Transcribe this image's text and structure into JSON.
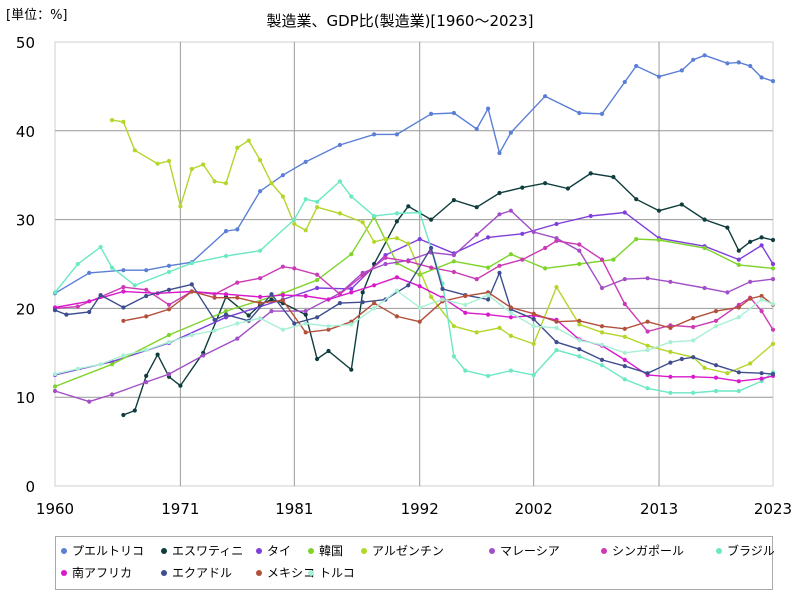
{
  "unit_label": "[単位：%]",
  "chart_data": {
    "type": "line",
    "title": "製造業、GDP比(製造業)[1960～2023]",
    "xlabel": "",
    "ylabel": "",
    "xlim": [
      1960,
      2023
    ],
    "ylim": [
      0,
      50
    ],
    "x_ticks": [
      "1960",
      "1971",
      "1981",
      "1992",
      "2002",
      "2013",
      "2023"
    ],
    "y_ticks": [
      "0",
      "10",
      "20",
      "30",
      "40",
      "50"
    ],
    "grid": true,
    "legend_position": "bottom",
    "series": [
      {
        "name": "プエルトリコ",
        "color": "#5b7fd6",
        "x": [
          1960,
          1963,
          1966,
          1968,
          1970,
          1972,
          1975,
          1976,
          1978,
          1980,
          1982,
          1985,
          1988,
          1990,
          1993,
          1995,
          1997,
          1998,
          1999,
          2000,
          2003,
          2006,
          2008,
          2010,
          2011,
          2013,
          2015,
          2016,
          2017,
          2019,
          2020,
          2021,
          2022,
          2023
        ],
        "y": [
          21.7,
          24.0,
          24.3,
          24.3,
          24.8,
          25.2,
          28.7,
          28.9,
          33.2,
          35.0,
          36.5,
          38.4,
          39.6,
          39.6,
          41.9,
          42.0,
          40.2,
          42.5,
          37.5,
          39.8,
          43.9,
          42.0,
          41.9,
          45.5,
          47.3,
          46.1,
          46.8,
          48.0,
          48.5,
          47.6,
          47.7,
          47.3,
          46.0,
          45.6
        ]
      },
      {
        "name": "エスワティニ",
        "color": "#0f3d3e",
        "x": [
          1966,
          1967,
          1968,
          1969,
          1970,
          1971,
          1973,
          1975,
          1977,
          1978,
          1979,
          1980,
          1982,
          1983,
          1984,
          1986,
          1987,
          1988,
          1990,
          1991,
          1993,
          1995,
          1997,
          1999,
          2001,
          2003,
          2005,
          2007,
          2009,
          2011,
          2013,
          2015,
          2017,
          2019,
          2020,
          2021,
          2022,
          2023
        ],
        "y": [
          8.0,
          8.5,
          12.4,
          14.8,
          12.3,
          11.3,
          15.0,
          21.3,
          19.2,
          20.4,
          21.0,
          20.6,
          19.3,
          14.3,
          15.2,
          13.1,
          21.8,
          25.0,
          29.8,
          31.5,
          30.0,
          32.2,
          31.4,
          33.0,
          33.6,
          34.1,
          33.5,
          35.2,
          34.8,
          32.3,
          31.0,
          31.7,
          30.0,
          29.1,
          26.5,
          27.5,
          28.0,
          27.7
        ]
      },
      {
        "name": "タイ",
        "color": "#7f3fdc",
        "x": [
          1960,
          1965,
          1970,
          1975,
          1980,
          1983,
          1986,
          1989,
          1992,
          1995,
          1998,
          2001,
          2004,
          2007,
          2010,
          2013,
          2017,
          2020,
          2022,
          2023
        ],
        "y": [
          12.5,
          14.0,
          16.1,
          19.0,
          21.0,
          22.3,
          22.2,
          26.0,
          27.8,
          26.2,
          28.0,
          28.4,
          29.5,
          30.4,
          30.8,
          27.9,
          27.0,
          25.5,
          27.1,
          25.0
        ]
      },
      {
        "name": "韓国",
        "color": "#7ed42a",
        "x": [
          1960,
          1965,
          1970,
          1975,
          1980,
          1983,
          1986,
          1988,
          1990,
          1992,
          1995,
          1998,
          2000,
          2003,
          2006,
          2009,
          2011,
          2013,
          2017,
          2020,
          2023
        ],
        "y": [
          11.2,
          13.7,
          17.0,
          19.7,
          21.7,
          23.2,
          26.1,
          30.3,
          25.1,
          23.8,
          25.3,
          24.6,
          26.1,
          24.5,
          25.0,
          25.5,
          27.8,
          27.7,
          26.8,
          24.9,
          24.5
        ]
      },
      {
        "name": "アルゼンチン",
        "color": "#b3d62a",
        "x": [
          1965,
          1966,
          1967,
          1969,
          1970,
          1971,
          1972,
          1973,
          1974,
          1975,
          1976,
          1977,
          1978,
          1979,
          1980,
          1981,
          1982,
          1983,
          1985,
          1987,
          1988,
          1989,
          1990,
          1991,
          1993,
          1995,
          1997,
          1999,
          2000,
          2002,
          2004,
          2006,
          2008,
          2010,
          2012,
          2014,
          2016,
          2017,
          2019,
          2021,
          2023
        ],
        "y": [
          41.2,
          41.0,
          37.8,
          36.3,
          36.6,
          31.5,
          35.7,
          36.2,
          34.3,
          34.1,
          38.1,
          38.9,
          36.7,
          34.1,
          32.6,
          29.5,
          28.8,
          31.4,
          30.7,
          29.7,
          27.5,
          27.8,
          27.9,
          27.3,
          21.3,
          18.0,
          17.3,
          17.8,
          16.9,
          16.0,
          22.4,
          18.2,
          17.3,
          16.8,
          15.8,
          15.1,
          14.5,
          13.3,
          12.7,
          13.8,
          16.0
        ]
      },
      {
        "name": "マレーシア",
        "color": "#a24fc7",
        "x": [
          1960,
          1963,
          1965,
          1968,
          1970,
          1973,
          1976,
          1979,
          1982,
          1985,
          1987,
          1989,
          1991,
          1993,
          1995,
          1997,
          1999,
          2000,
          2002,
          2004,
          2006,
          2008,
          2010,
          2012,
          2014,
          2017,
          2019,
          2021,
          2023
        ],
        "y": [
          10.7,
          9.5,
          10.3,
          11.7,
          12.6,
          14.7,
          16.6,
          19.7,
          19.7,
          21.7,
          24.0,
          25.0,
          25.4,
          26.3,
          26.0,
          28.3,
          30.6,
          31.0,
          28.6,
          27.9,
          26.5,
          22.3,
          23.3,
          23.4,
          23.0,
          22.3,
          21.8,
          23.0,
          23.3
        ]
      },
      {
        "name": "シンガポール",
        "color": "#cc39b6",
        "x": [
          1960,
          1962,
          1964,
          1966,
          1968,
          1970,
          1972,
          1974,
          1976,
          1978,
          1980,
          1981,
          1983,
          1985,
          1987,
          1989,
          1991,
          1993,
          1995,
          1997,
          1999,
          2001,
          2003,
          2004,
          2006,
          2008,
          2010,
          2012,
          2014,
          2016,
          2018,
          2020,
          2021,
          2022,
          2023
        ],
        "y": [
          20.0,
          20.2,
          21.3,
          22.4,
          22.1,
          20.4,
          21.9,
          21.6,
          22.9,
          23.4,
          24.7,
          24.5,
          23.8,
          21.6,
          23.7,
          25.7,
          25.3,
          24.6,
          24.1,
          23.3,
          24.8,
          25.5,
          26.8,
          27.6,
          27.2,
          25.5,
          20.5,
          17.4,
          18.1,
          17.9,
          18.6,
          20.4,
          21.2,
          19.7,
          17.6
        ]
      },
      {
        "name": "ブラジル",
        "color": "#6be8c4",
        "x": [
          1960,
          1962,
          1964,
          1965,
          1967,
          1970,
          1972,
          1975,
          1978,
          1981,
          1982,
          1983,
          1985,
          1986,
          1988,
          1990,
          1992,
          1994,
          1995,
          1996,
          1998,
          2000,
          2002,
          2004,
          2006,
          2008,
          2010,
          2012,
          2014,
          2016,
          2018,
          2020,
          2022,
          2023
        ],
        "y": [
          21.8,
          25.0,
          26.9,
          24.6,
          22.6,
          24.1,
          25.1,
          25.9,
          26.5,
          30.0,
          32.3,
          32.0,
          34.3,
          32.6,
          30.4,
          30.7,
          30.8,
          22.8,
          14.6,
          13.0,
          12.4,
          13.0,
          12.5,
          15.3,
          14.6,
          13.6,
          12.0,
          11.0,
          10.5,
          10.5,
          10.7,
          10.7,
          11.8,
          12.8
        ]
      },
      {
        "name": "南アフリカ",
        "color": "#d819cc",
        "x": [
          1960,
          1963,
          1966,
          1969,
          1972,
          1975,
          1978,
          1980,
          1982,
          1984,
          1986,
          1988,
          1990,
          1992,
          1994,
          1996,
          1998,
          2000,
          2002,
          2004,
          2006,
          2008,
          2010,
          2012,
          2014,
          2016,
          2018,
          2020,
          2022,
          2023
        ],
        "y": [
          20.1,
          20.8,
          21.9,
          21.7,
          21.9,
          21.6,
          21.3,
          21.5,
          21.4,
          21.0,
          21.8,
          22.6,
          23.5,
          22.5,
          21.2,
          19.5,
          19.3,
          19.0,
          19.2,
          18.7,
          16.5,
          15.8,
          14.2,
          12.5,
          12.3,
          12.3,
          12.2,
          11.8,
          12.1,
          12.4
        ]
      },
      {
        "name": "エクアドル",
        "color": "#3e4d8f",
        "x": [
          1960,
          1961,
          1963,
          1964,
          1966,
          1968,
          1970,
          1972,
          1974,
          1975,
          1977,
          1979,
          1981,
          1983,
          1985,
          1987,
          1989,
          1991,
          1993,
          1994,
          1996,
          1998,
          1999,
          2000,
          2002,
          2004,
          2006,
          2008,
          2010,
          2012,
          2014,
          2015,
          2016,
          2018,
          2020,
          2022,
          2023
        ],
        "y": [
          19.8,
          19.3,
          19.6,
          21.5,
          20.1,
          21.4,
          22.1,
          22.7,
          18.7,
          19.3,
          18.6,
          21.6,
          18.3,
          19.0,
          20.6,
          20.7,
          21.0,
          22.6,
          26.8,
          22.2,
          21.5,
          21.0,
          24.0,
          19.9,
          18.8,
          16.2,
          15.4,
          14.2,
          13.5,
          12.7,
          13.9,
          14.3,
          14.5,
          13.6,
          12.8,
          12.7,
          12.6
        ]
      },
      {
        "name": "メキシコ",
        "color": "#b3503b",
        "x": [
          1966,
          1968,
          1970,
          1972,
          1974,
          1976,
          1978,
          1980,
          1982,
          1984,
          1986,
          1988,
          1990,
          1992,
          1994,
          1996,
          1998,
          2000,
          2002,
          2004,
          2006,
          2008,
          2010,
          2012,
          2014,
          2016,
          2018,
          2020,
          2021,
          2022,
          2023
        ],
        "y": [
          18.6,
          19.1,
          19.9,
          21.9,
          21.2,
          21.2,
          20.6,
          20.9,
          17.3,
          17.6,
          18.5,
          20.6,
          19.1,
          18.5,
          20.8,
          21.4,
          21.8,
          20.1,
          19.4,
          18.5,
          18.6,
          18.0,
          17.7,
          18.5,
          17.8,
          18.9,
          19.7,
          20.1,
          21.1,
          21.4,
          20.4
        ]
      },
      {
        "name": "トルコ",
        "color": "#a8f0d5",
        "x": [
          1960,
          1962,
          1964,
          1966,
          1968,
          1970,
          1972,
          1974,
          1976,
          1978,
          1980,
          1982,
          1984,
          1986,
          1988,
          1990,
          1992,
          1994,
          1996,
          1998,
          2000,
          2002,
          2004,
          2006,
          2008,
          2010,
          2012,
          2014,
          2016,
          2018,
          2020,
          2022,
          2023
        ],
        "y": [
          12.6,
          13.2,
          13.7,
          14.7,
          15.3,
          16.2,
          17.0,
          17.5,
          18.3,
          18.9,
          17.6,
          18.3,
          18.0,
          18.2,
          20.0,
          22.0,
          20.1,
          21.0,
          20.4,
          21.5,
          19.5,
          18.0,
          17.8,
          16.4,
          15.9,
          15.0,
          15.3,
          16.2,
          16.4,
          18.0,
          19.0,
          21.0,
          20.5
        ]
      }
    ]
  }
}
